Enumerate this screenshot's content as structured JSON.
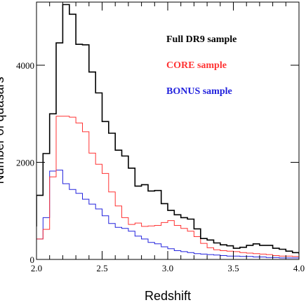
{
  "chart_data": {
    "type": "step-histogram",
    "xlabel": "Redshift",
    "ylabel": "Number of quasars",
    "xlim": [
      2.0,
      4.0
    ],
    "ylim": [
      0,
      5300
    ],
    "x_ticks": [
      2.0,
      2.5,
      3.0,
      3.5,
      4.0
    ],
    "x_tick_labels": [
      "2.0",
      "2.5",
      "3.0",
      "3.5",
      "4.0"
    ],
    "y_ticks": [
      0,
      2000,
      4000
    ],
    "y_tick_labels": [
      "0",
      "2000",
      "4000"
    ],
    "bin_width": 0.05,
    "legend_position": "top-right",
    "series": [
      {
        "name": "Full DR9 sample",
        "color": "#000000",
        "edges_start": 1.95,
        "values": [
          690,
          1320,
          2180,
          3000,
          4460,
          5250,
          5050,
          4430,
          4420,
          3860,
          3430,
          2840,
          2600,
          2250,
          2130,
          1880,
          1510,
          1540,
          1410,
          1420,
          1150,
          1010,
          920,
          860,
          830,
          630,
          430,
          400,
          340,
          300,
          280,
          230,
          250,
          290,
          320,
          290,
          290,
          230,
          210,
          170,
          140,
          120
        ]
      },
      {
        "name": "CORE sample",
        "color": "#ff3333",
        "edges_start": 1.95,
        "values": [
          380,
          420,
          620,
          1700,
          2950,
          2950,
          2930,
          2810,
          2630,
          2190,
          1960,
          1770,
          1390,
          1100,
          860,
          720,
          750,
          680,
          690,
          700,
          760,
          800,
          700,
          640,
          580,
          470,
          330,
          240,
          200,
          180,
          170,
          160,
          140,
          130,
          120,
          110,
          100,
          80,
          70,
          70,
          60,
          50
        ]
      },
      {
        "name": "BONUS sample",
        "color": "#2222dd",
        "edges_start": 1.95,
        "values": [
          260,
          420,
          860,
          1820,
          1840,
          1560,
          1440,
          1360,
          1240,
          1140,
          1040,
          900,
          740,
          660,
          640,
          580,
          480,
          420,
          350,
          320,
          260,
          220,
          180,
          160,
          140,
          120,
          110,
          100,
          90,
          80,
          70,
          70,
          60,
          60,
          50,
          50,
          40,
          40,
          30,
          30,
          30,
          20
        ]
      }
    ]
  }
}
